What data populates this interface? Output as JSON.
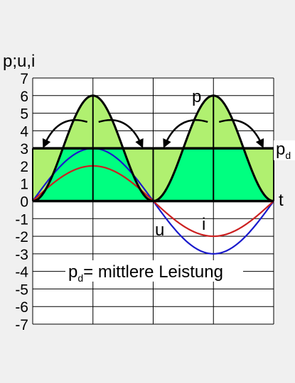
{
  "chart_data": {
    "type": "line",
    "ylabel": "p;u,i",
    "xlabel": "t",
    "ylim": [
      -7,
      7
    ],
    "yticks": [
      "7",
      "6",
      "5",
      "4",
      "3",
      "2",
      "1",
      "0",
      "-1",
      "-2",
      "-3",
      "-4",
      "-5",
      "-6",
      "-7"
    ],
    "grid": true,
    "series": [
      {
        "name": "p",
        "color": "#000000",
        "fill": "#b0f070",
        "formula": "6*sin(pi*x)^2",
        "x": [
          0,
          0.5,
          1,
          1.5,
          2
        ],
        "values": [
          0,
          6,
          0,
          6,
          0
        ]
      },
      {
        "name": "u",
        "color": "#1a1acc",
        "formula": "3*sin(pi*x)",
        "x": [
          0,
          0.5,
          1,
          1.5,
          2
        ],
        "values": [
          0,
          3,
          0,
          -3,
          0
        ]
      },
      {
        "name": "i",
        "color": "#cc2020",
        "formula": "2*sin(pi*x)",
        "x": [
          0,
          0.5,
          1,
          1.5,
          2
        ],
        "values": [
          0,
          2,
          0,
          -2,
          0
        ]
      }
    ],
    "mean_power": {
      "label": "p",
      "subscript": "d",
      "value": 3,
      "color": "#000000",
      "fill": "#00ff80"
    },
    "annotations": {
      "p_label": "p",
      "u_label": "u",
      "i_label": "i",
      "caption_main": "p",
      "caption_sub": "d",
      "caption_rest": "= mittlere Leistung"
    },
    "colors": {
      "plot_bg": "#ffffff",
      "area_fill": "#b0f070",
      "mean_fill": "#00ff80"
    }
  }
}
